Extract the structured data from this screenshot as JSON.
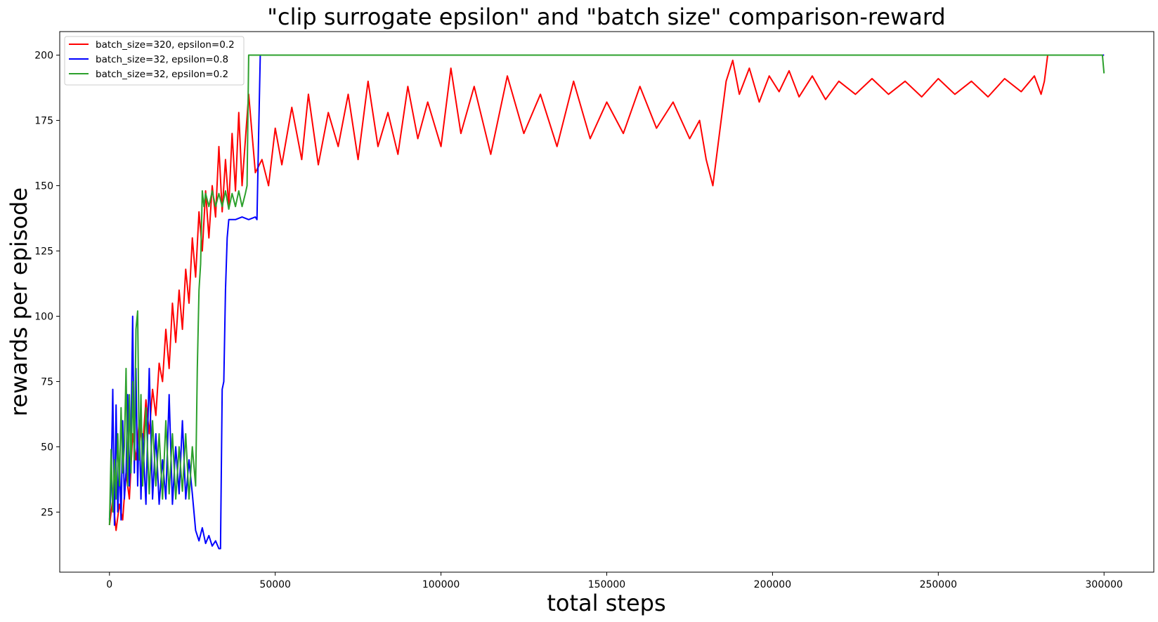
{
  "chart_data": {
    "type": "line",
    "title": "\"clip surrogate epsilon\" and \"batch size\" comparison-reward",
    "xlabel": "total steps",
    "ylabel": "rewards per episode",
    "xlim": [
      -15000,
      315000
    ],
    "ylim": [
      2,
      209
    ],
    "xticks": [
      0,
      50000,
      100000,
      150000,
      200000,
      250000,
      300000
    ],
    "yticks": [
      25,
      50,
      75,
      100,
      125,
      150,
      175,
      200
    ],
    "grid": false,
    "legend": "top-left",
    "series": [
      {
        "name": "batch_size=320, epsilon=0.2",
        "color": "#ff0000",
        "points": [
          [
            0,
            20
          ],
          [
            1000,
            30
          ],
          [
            2000,
            18
          ],
          [
            3000,
            28
          ],
          [
            4000,
            22
          ],
          [
            5000,
            40
          ],
          [
            6000,
            30
          ],
          [
            7000,
            55
          ],
          [
            8000,
            45
          ],
          [
            9000,
            60
          ],
          [
            10000,
            50
          ],
          [
            11000,
            68
          ],
          [
            12000,
            55
          ],
          [
            13000,
            72
          ],
          [
            14000,
            62
          ],
          [
            15000,
            82
          ],
          [
            16000,
            75
          ],
          [
            17000,
            95
          ],
          [
            18000,
            80
          ],
          [
            19000,
            105
          ],
          [
            20000,
            90
          ],
          [
            21000,
            110
          ],
          [
            22000,
            95
          ],
          [
            23000,
            118
          ],
          [
            24000,
            105
          ],
          [
            25000,
            130
          ],
          [
            26000,
            115
          ],
          [
            27000,
            140
          ],
          [
            28000,
            125
          ],
          [
            29000,
            148
          ],
          [
            30000,
            130
          ],
          [
            31000,
            150
          ],
          [
            32000,
            138
          ],
          [
            33000,
            165
          ],
          [
            34000,
            140
          ],
          [
            35000,
            160
          ],
          [
            36000,
            142
          ],
          [
            37000,
            170
          ],
          [
            38000,
            148
          ],
          [
            39000,
            178
          ],
          [
            40000,
            150
          ],
          [
            42000,
            185
          ],
          [
            44000,
            155
          ],
          [
            46000,
            160
          ],
          [
            48000,
            150
          ],
          [
            50000,
            172
          ],
          [
            52000,
            158
          ],
          [
            55000,
            180
          ],
          [
            58000,
            160
          ],
          [
            60000,
            185
          ],
          [
            63000,
            158
          ],
          [
            66000,
            178
          ],
          [
            69000,
            165
          ],
          [
            72000,
            185
          ],
          [
            75000,
            160
          ],
          [
            78000,
            190
          ],
          [
            81000,
            165
          ],
          [
            84000,
            178
          ],
          [
            87000,
            162
          ],
          [
            90000,
            188
          ],
          [
            93000,
            168
          ],
          [
            96000,
            182
          ],
          [
            100000,
            165
          ],
          [
            103000,
            195
          ],
          [
            106000,
            170
          ],
          [
            110000,
            188
          ],
          [
            115000,
            162
          ],
          [
            120000,
            192
          ],
          [
            125000,
            170
          ],
          [
            130000,
            185
          ],
          [
            135000,
            165
          ],
          [
            140000,
            190
          ],
          [
            145000,
            168
          ],
          [
            150000,
            182
          ],
          [
            155000,
            170
          ],
          [
            160000,
            188
          ],
          [
            165000,
            172
          ],
          [
            170000,
            182
          ],
          [
            175000,
            168
          ],
          [
            178000,
            175
          ],
          [
            180000,
            160
          ],
          [
            182000,
            150
          ],
          [
            184000,
            170
          ],
          [
            186000,
            190
          ],
          [
            188000,
            198
          ],
          [
            190000,
            185
          ],
          [
            193000,
            195
          ],
          [
            196000,
            182
          ],
          [
            199000,
            192
          ],
          [
            202000,
            186
          ],
          [
            205000,
            194
          ],
          [
            208000,
            184
          ],
          [
            212000,
            192
          ],
          [
            216000,
            183
          ],
          [
            220000,
            190
          ],
          [
            225000,
            185
          ],
          [
            230000,
            191
          ],
          [
            235000,
            185
          ],
          [
            240000,
            190
          ],
          [
            245000,
            184
          ],
          [
            250000,
            191
          ],
          [
            255000,
            185
          ],
          [
            260000,
            190
          ],
          [
            265000,
            184
          ],
          [
            270000,
            191
          ],
          [
            275000,
            186
          ],
          [
            279000,
            192
          ],
          [
            281000,
            185
          ],
          [
            282000,
            190
          ],
          [
            283000,
            200
          ],
          [
            300000,
            200
          ]
        ]
      },
      {
        "name": "batch_size=32, epsilon=0.8",
        "color": "#0000ff",
        "points": [
          [
            0,
            22
          ],
          [
            500,
            35
          ],
          [
            1000,
            72
          ],
          [
            1500,
            20
          ],
          [
            2000,
            66
          ],
          [
            2500,
            25
          ],
          [
            3000,
            45
          ],
          [
            3500,
            22
          ],
          [
            4000,
            60
          ],
          [
            4500,
            30
          ],
          [
            5000,
            40
          ],
          [
            5500,
            70
          ],
          [
            6000,
            35
          ],
          [
            6500,
            55
          ],
          [
            7000,
            100
          ],
          [
            7500,
            40
          ],
          [
            8000,
            80
          ],
          [
            8500,
            35
          ],
          [
            9000,
            60
          ],
          [
            9500,
            30
          ],
          [
            10000,
            55
          ],
          [
            11000,
            28
          ],
          [
            12000,
            80
          ],
          [
            13000,
            30
          ],
          [
            14000,
            55
          ],
          [
            15000,
            28
          ],
          [
            16000,
            45
          ],
          [
            17000,
            30
          ],
          [
            18000,
            70
          ],
          [
            19000,
            28
          ],
          [
            20000,
            50
          ],
          [
            21000,
            32
          ],
          [
            22000,
            60
          ],
          [
            23000,
            30
          ],
          [
            24000,
            45
          ],
          [
            25000,
            32
          ],
          [
            26000,
            18
          ],
          [
            27000,
            14
          ],
          [
            28000,
            19
          ],
          [
            29000,
            13
          ],
          [
            30000,
            16
          ],
          [
            31000,
            12
          ],
          [
            32000,
            14
          ],
          [
            33000,
            11
          ],
          [
            33500,
            11
          ],
          [
            34000,
            72
          ],
          [
            34500,
            75
          ],
          [
            35000,
            110
          ],
          [
            35500,
            130
          ],
          [
            36000,
            137
          ],
          [
            38000,
            137
          ],
          [
            40000,
            138
          ],
          [
            42000,
            137
          ],
          [
            44000,
            138
          ],
          [
            44500,
            137
          ],
          [
            45000,
            170
          ],
          [
            45500,
            200
          ],
          [
            300000,
            200
          ]
        ]
      },
      {
        "name": "batch_size=32, epsilon=0.2",
        "color": "#2ca02c",
        "points": [
          [
            0,
            20
          ],
          [
            500,
            49
          ],
          [
            1000,
            25
          ],
          [
            1500,
            45
          ],
          [
            2000,
            30
          ],
          [
            2500,
            55
          ],
          [
            3000,
            35
          ],
          [
            3500,
            65
          ],
          [
            4000,
            40
          ],
          [
            4500,
            50
          ],
          [
            5000,
            80
          ],
          [
            5500,
            35
          ],
          [
            6000,
            70
          ],
          [
            6500,
            40
          ],
          [
            7000,
            75
          ],
          [
            7500,
            45
          ],
          [
            8000,
            95
          ],
          [
            8500,
            102
          ],
          [
            9000,
            45
          ],
          [
            9500,
            70
          ],
          [
            10000,
            35
          ],
          [
            11000,
            65
          ],
          [
            12000,
            32
          ],
          [
            13000,
            60
          ],
          [
            14000,
            35
          ],
          [
            15000,
            55
          ],
          [
            16000,
            30
          ],
          [
            17000,
            60
          ],
          [
            18000,
            32
          ],
          [
            19000,
            55
          ],
          [
            20000,
            30
          ],
          [
            21000,
            50
          ],
          [
            22000,
            33
          ],
          [
            23000,
            55
          ],
          [
            24000,
            30
          ],
          [
            25000,
            50
          ],
          [
            26000,
            35
          ],
          [
            26500,
            80
          ],
          [
            27000,
            110
          ],
          [
            27500,
            120
          ],
          [
            28000,
            148
          ],
          [
            28500,
            142
          ],
          [
            29000,
            147
          ],
          [
            30000,
            142
          ],
          [
            31000,
            148
          ],
          [
            32000,
            142
          ],
          [
            33000,
            147
          ],
          [
            34000,
            142
          ],
          [
            35000,
            148
          ],
          [
            36000,
            141
          ],
          [
            37000,
            147
          ],
          [
            38000,
            142
          ],
          [
            39000,
            148
          ],
          [
            40000,
            142
          ],
          [
            41000,
            147
          ],
          [
            41500,
            150
          ],
          [
            42000,
            200
          ],
          [
            299500,
            200
          ],
          [
            300000,
            193
          ]
        ]
      }
    ]
  }
}
